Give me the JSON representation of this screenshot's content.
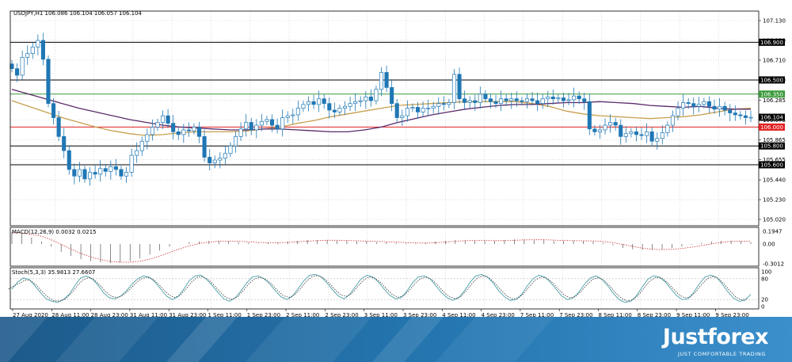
{
  "chart_data": [
    {
      "type": "candlestick",
      "symbol_header": "USDJPY,H1  106.086 106.104 106.057 106.104",
      "y_ticks": [
        "107.130",
        "106.920",
        "106.710",
        "106.500",
        "106.285",
        "106.075",
        "105.865",
        "105.655",
        "105.440",
        "105.230",
        "105.020"
      ],
      "ylim": [
        105.02,
        107.13
      ],
      "x_ticks": [
        "27 Aug 2020",
        "28 Aug 11:00",
        "28 Aug 23:00",
        "31 Aug 11:00",
        "31 Aug 23:00",
        "1 Sep 11:00",
        "1 Sep 23:00",
        "2 Sep 11:00",
        "2 Sep 23:00",
        "3 Sep 11:00",
        "3 Sep 23:00",
        "4 Sep 11:00",
        "4 Sep 23:00",
        "7 Sep 11:00",
        "7 Sep 23:00",
        "8 Sep 11:00",
        "8 Sep 23:00",
        "9 Sep 11:00",
        "9 Sep 23:00"
      ],
      "horizontal_levels": [
        {
          "price": 106.9,
          "label": "106.900",
          "color": "#000000"
        },
        {
          "price": 106.5,
          "label": "106.500",
          "color": "#000000"
        },
        {
          "price": 106.35,
          "label": "106.350",
          "color": "#3a9a3a"
        },
        {
          "price": 106.104,
          "label": "106.104",
          "color": "#000000",
          "current": true
        },
        {
          "price": 106.0,
          "label": "106.000",
          "color": "#e02020"
        },
        {
          "price": 105.8,
          "label": "105.800",
          "color": "#000000"
        },
        {
          "price": 105.6,
          "label": "105.600",
          "color": "#000000"
        }
      ],
      "close_series": [
        106.62,
        106.55,
        106.74,
        106.78,
        106.85,
        106.92,
        106.72,
        106.25,
        106.1,
        105.9,
        105.75,
        105.55,
        105.48,
        105.55,
        105.45,
        105.52,
        105.5,
        105.56,
        105.53,
        105.58,
        105.55,
        105.48,
        105.52,
        105.7,
        105.75,
        105.85,
        105.92,
        106.0,
        106.05,
        106.12,
        106.04,
        105.95,
        105.92,
        105.97,
        105.96,
        106.0,
        105.9,
        105.68,
        105.62,
        105.65,
        105.67,
        105.72,
        105.8,
        105.9,
        105.98,
        106.05,
        105.97,
        106.02,
        106.06,
        106.08,
        106.02,
        105.98,
        106.1,
        106.12,
        106.13,
        106.2,
        106.24,
        106.27,
        106.24,
        106.3,
        106.25,
        106.18,
        106.16,
        106.2,
        106.22,
        106.25,
        106.27,
        106.28,
        106.32,
        106.28,
        106.4,
        106.58,
        106.42,
        106.25,
        106.1,
        106.12,
        106.2,
        106.21,
        106.16,
        106.2,
        106.2,
        106.22,
        106.25,
        106.24,
        106.26,
        106.56,
        106.3,
        106.26,
        106.28,
        106.26,
        106.35,
        106.3,
        106.27,
        106.25,
        106.3,
        106.28,
        106.3,
        106.28,
        106.27,
        106.3,
        106.28,
        106.25,
        106.3,
        106.32,
        106.3,
        106.31,
        106.28,
        106.29,
        106.33,
        106.3,
        106.27,
        105.98,
        105.95,
        105.97,
        106.02,
        106.05,
        106.02,
        105.9,
        105.93,
        105.95,
        105.92,
        105.91,
        105.95,
        105.85,
        105.88,
        105.94,
        106.02,
        106.12,
        106.2,
        106.26,
        106.25,
        106.22,
        106.24,
        106.27,
        106.22,
        106.19,
        106.22,
        106.18,
        106.15,
        106.13,
        106.12,
        106.1,
        106.104
      ],
      "ma_series": [
        {
          "color": "#c8a050",
          "values": [
            106.28,
            106.22,
            106.16,
            106.1,
            106.05,
            106.0,
            105.96,
            105.93,
            105.91,
            105.92,
            105.94,
            105.95,
            105.95,
            105.95,
            105.96,
            105.98,
            106.0,
            106.04,
            106.07,
            106.11,
            106.14,
            106.17,
            106.2,
            106.23,
            106.24,
            106.25,
            106.26,
            106.27,
            106.27,
            106.27,
            106.27,
            106.25,
            106.22,
            106.17,
            106.14,
            106.12,
            106.11,
            106.1,
            106.09,
            106.1,
            106.11,
            106.13,
            106.16,
            106.19,
            106.2
          ]
        },
        {
          "color": "#5a2a6a",
          "values": [
            106.4,
            106.35,
            106.3,
            106.25,
            106.2,
            106.16,
            106.12,
            106.08,
            106.05,
            106.02,
            106.0,
            105.99,
            105.98,
            105.97,
            105.97,
            105.98,
            105.98,
            105.97,
            105.96,
            105.95,
            105.95,
            105.97,
            106.0,
            106.05,
            106.09,
            106.13,
            106.16,
            106.19,
            106.21,
            106.23,
            106.24,
            106.24,
            106.25,
            106.26,
            106.26,
            106.27,
            106.26,
            106.25,
            106.23,
            106.22,
            106.21,
            106.22,
            106.2,
            106.19,
            106.19
          ]
        }
      ]
    },
    {
      "type": "bar",
      "indicator": "MACD",
      "label": "MACD(12,26,9) 0.0032 0.0215",
      "y_ticks": [
        "0.1947",
        "0.00",
        "-0.3012"
      ],
      "ylim": [
        -0.3012,
        0.1947
      ],
      "values": [
        0.18,
        0.16,
        0.1,
        0.04,
        -0.04,
        -0.12,
        -0.18,
        -0.23,
        -0.26,
        -0.28,
        -0.29,
        -0.28,
        -0.26,
        -0.22,
        -0.16,
        -0.1,
        -0.04,
        0.0,
        0.03,
        0.04,
        0.05,
        0.05,
        0.04,
        0.03,
        0.02,
        0.01,
        0.02,
        0.03,
        0.04,
        0.05,
        0.06,
        0.06,
        0.06,
        0.05,
        0.05,
        0.04,
        0.04,
        0.03,
        0.03,
        0.02,
        0.01,
        0.01,
        0.02,
        0.04,
        0.05,
        0.06,
        0.06,
        0.05,
        0.05,
        0.05,
        0.06,
        0.07,
        0.07,
        0.06,
        0.06,
        0.05,
        0.05,
        0.05,
        0.05,
        0.04,
        0.02,
        -0.02,
        -0.06,
        -0.08,
        -0.09,
        -0.09,
        -0.08,
        -0.06,
        -0.04,
        -0.01,
        0.02,
        0.04,
        0.05,
        0.05,
        0.04,
        0.03
      ]
    },
    {
      "type": "line",
      "indicator": "Stochastic",
      "label": "Stoch(5,3,3) 35.9813 27.6607",
      "y_ticks": [
        "100",
        "80",
        "20",
        "0"
      ],
      "ylim": [
        0,
        100
      ],
      "series": [
        {
          "values": [
            50,
            70,
            82,
            78,
            60,
            40,
            22,
            15,
            12,
            20,
            35,
            60,
            82,
            88,
            80,
            62,
            40,
            25,
            22,
            30,
            45,
            65,
            80,
            88,
            84,
            70,
            50,
            30,
            20,
            28,
            50,
            75,
            88,
            90,
            78,
            60,
            40,
            22,
            15,
            25,
            45,
            68,
            85,
            88,
            80,
            65,
            45,
            28,
            20,
            30,
            52,
            75,
            90,
            92,
            85,
            68,
            48,
            30,
            22,
            35,
            58,
            80,
            90,
            85,
            70,
            50,
            32,
            22,
            26,
            45,
            70,
            85,
            88,
            80,
            60,
            40,
            25,
            18,
            25,
            45,
            70,
            88,
            92,
            85,
            68,
            45,
            28,
            18,
            20,
            35,
            60,
            80,
            90,
            85,
            70,
            50,
            30,
            20,
            25,
            42,
            65,
            82,
            88,
            78,
            60,
            38,
            20,
            12,
            15,
            30,
            55,
            78,
            88,
            85,
            72,
            52,
            32,
            20,
            22,
            40,
            65,
            85,
            90,
            84,
            65,
            42,
            24,
            15,
            18,
            35
          ]
        }
      ]
    }
  ],
  "brand": {
    "logo": "Justforex",
    "tagline": "JUST COMFORTABLE TRADING"
  }
}
